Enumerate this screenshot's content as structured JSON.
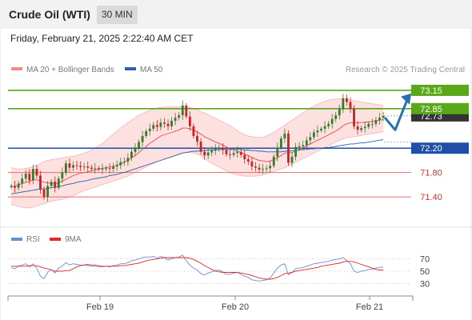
{
  "header": {
    "title": "Crude Oil (WTI)",
    "timeframe": "30 MIN"
  },
  "datetime": "Friday, February 21, 2025 2:22:40 AM CET",
  "credit": "Research © 2025 Trading Central",
  "legend": {
    "ma20": "MA 20 + Bollinger Bands",
    "ma50": "MA 50",
    "rsi": "RSI",
    "ma9": "9MA"
  },
  "colors": {
    "bull": "#3a7a2a",
    "bear": "#cc2222",
    "ma20": "#e84a4a",
    "ma50": "#2f5fa8",
    "band": "#fcd9d9",
    "resistance": "#5aa81a",
    "pivot": "#1f4fa8",
    "support": "#e76a6a",
    "rsi": "#6a8fd8",
    "ma9": "#e02a2a",
    "last_price_bg": "#333333",
    "arrow": "#2c6fb0"
  },
  "chart_data": {
    "type": "candlestick",
    "ylim": [
      71.06,
      73.32
    ],
    "x_ticks": [
      "Feb 19",
      "Feb 20",
      "Feb 21"
    ],
    "levels": [
      {
        "value": 73.15,
        "label": "73.15",
        "kind": "resistance"
      },
      {
        "value": 72.85,
        "label": "72.85",
        "kind": "resistance"
      },
      {
        "value": 72.2,
        "label": "72.20",
        "kind": "pivot"
      },
      {
        "value": 71.8,
        "label": "71.80",
        "kind": "support"
      },
      {
        "value": 71.4,
        "label": "71.40",
        "kind": "support"
      }
    ],
    "last_price": {
      "value": 72.73,
      "label": "72.73"
    },
    "close": [
      71.58,
      71.55,
      71.62,
      71.7,
      71.78,
      71.67,
      71.86,
      71.75,
      71.52,
      71.4,
      71.58,
      71.65,
      71.55,
      71.7,
      71.8,
      71.95,
      71.88,
      71.92,
      71.91,
      71.89,
      71.9,
      71.88,
      71.86,
      71.87,
      71.85,
      71.86,
      71.87,
      71.86,
      71.9,
      71.92,
      71.97,
      71.98,
      72.04,
      72.14,
      72.2,
      72.3,
      72.4,
      72.48,
      72.52,
      72.58,
      72.55,
      72.62,
      72.6,
      72.56,
      72.65,
      72.7,
      72.74,
      72.9,
      72.72,
      72.56,
      72.4,
      72.31,
      72.14,
      72.08,
      72.13,
      72.16,
      72.19,
      72.2,
      72.17,
      72.1,
      72.09,
      72.12,
      72.14,
      72.09,
      72.02,
      71.98,
      71.9,
      71.88,
      71.85,
      71.86,
      71.87,
      71.91,
      72.06,
      72.21,
      72.36,
      72.44,
      71.96,
      72.06,
      72.22,
      72.23,
      72.25,
      72.33,
      72.38,
      72.46,
      72.49,
      72.52,
      72.56,
      72.6,
      72.68,
      72.74,
      72.84,
      73.02,
      72.96,
      72.85,
      72.56,
      72.5,
      72.53,
      72.55,
      72.6,
      72.6,
      72.66,
      72.7,
      72.73
    ],
    "ma20": [
      71.58,
      71.57,
      71.6,
      71.62,
      71.64,
      71.65,
      71.68,
      71.68,
      71.66,
      71.64,
      71.63,
      71.62,
      71.61,
      71.63,
      71.66,
      71.69,
      71.72,
      71.75,
      71.77,
      71.79,
      71.8,
      71.81,
      71.83,
      71.84,
      71.86,
      71.87,
      71.88,
      71.89,
      71.9,
      71.92,
      71.94,
      71.97,
      72.0,
      72.04,
      72.08,
      72.13,
      72.18,
      72.23,
      72.28,
      72.32,
      72.36,
      72.4,
      72.42,
      72.44,
      72.46,
      72.48,
      72.5,
      72.53,
      72.53,
      72.52,
      72.5,
      72.47,
      72.43,
      72.39,
      72.36,
      72.33,
      72.3,
      72.28,
      72.25,
      72.22,
      72.19,
      72.17,
      72.15,
      72.13,
      72.1,
      72.08,
      72.05,
      72.02,
      72.0,
      71.99,
      71.98,
      71.99,
      72.01,
      72.04,
      72.08,
      72.12,
      72.12,
      72.13,
      72.15,
      72.18,
      72.21,
      72.24,
      72.27,
      72.3,
      72.33,
      72.36,
      72.39,
      72.42,
      72.45,
      72.48,
      72.52,
      72.57,
      72.6,
      72.62,
      72.62,
      72.62,
      72.62,
      72.63,
      72.63,
      72.64,
      72.65,
      72.66,
      72.67
    ],
    "ma50": [
      71.45,
      71.46,
      71.47,
      71.48,
      71.49,
      71.5,
      71.51,
      71.52,
      71.53,
      71.53,
      71.54,
      71.55,
      71.56,
      71.57,
      71.58,
      71.6,
      71.61,
      71.62,
      71.64,
      71.65,
      71.66,
      71.67,
      71.69,
      71.7,
      71.71,
      71.72,
      71.73,
      71.75,
      71.76,
      71.77,
      71.79,
      71.8,
      71.82,
      71.84,
      71.86,
      71.88,
      71.9,
      71.92,
      71.94,
      71.96,
      71.98,
      72.0,
      72.02,
      72.04,
      72.06,
      72.08,
      72.1,
      72.12,
      72.13,
      72.14,
      72.15,
      72.15,
      72.16,
      72.16,
      72.17,
      72.17,
      72.17,
      72.18,
      72.18,
      72.18,
      72.18,
      72.18,
      72.18,
      72.18,
      72.17,
      72.17,
      72.16,
      72.16,
      72.15,
      72.15,
      72.14,
      72.14,
      72.14,
      72.14,
      72.14,
      72.15,
      72.15,
      72.16,
      72.16,
      72.17,
      72.18,
      72.18,
      72.19,
      72.19,
      72.2,
      72.2,
      72.21,
      72.21,
      72.22,
      72.23,
      72.24,
      72.25,
      72.26,
      72.27,
      72.27,
      72.28,
      72.29,
      72.29,
      72.3,
      72.31,
      72.32,
      72.33,
      72.34
    ],
    "bb_upper": [
      71.88,
      71.87,
      71.86,
      71.86,
      71.87,
      71.88,
      71.9,
      71.92,
      71.95,
      71.98,
      72.0,
      72.01,
      72.02,
      72.03,
      72.04,
      72.05,
      72.06,
      72.07,
      72.08,
      72.1,
      72.12,
      72.14,
      72.17,
      72.2,
      72.24,
      72.28,
      72.33,
      72.38,
      72.43,
      72.48,
      72.53,
      72.58,
      72.62,
      72.66,
      72.7,
      72.74,
      72.77,
      72.8,
      72.82,
      72.84,
      72.86,
      72.87,
      72.88,
      72.88,
      72.88,
      72.88,
      72.88,
      72.89,
      72.88,
      72.87,
      72.85,
      72.83,
      72.8,
      72.78,
      72.75,
      72.72,
      72.69,
      72.66,
      72.63,
      72.6,
      72.57,
      72.53,
      72.49,
      72.45,
      72.42,
      72.4,
      72.39,
      72.38,
      72.38,
      72.38,
      72.4,
      72.43,
      72.46,
      72.5,
      72.54,
      72.58,
      72.62,
      72.66,
      72.7,
      72.74,
      72.78,
      72.82,
      72.86,
      72.89,
      72.92,
      72.95,
      72.97,
      72.99,
      73.0,
      73.01,
      73.01,
      73.01,
      73.0,
      72.99,
      72.98,
      72.97,
      72.96,
      72.95,
      72.94,
      72.93,
      72.92,
      72.91,
      72.9
    ],
    "bb_lower": [
      71.28,
      71.26,
      71.24,
      71.23,
      71.22,
      71.22,
      71.23,
      71.25,
      71.27,
      71.29,
      71.31,
      71.33,
      71.34,
      71.35,
      71.36,
      71.38,
      71.4,
      71.42,
      71.45,
      71.48,
      71.5,
      71.52,
      71.54,
      71.56,
      71.58,
      71.6,
      71.62,
      71.64,
      71.66,
      71.68,
      71.7,
      71.72,
      71.74,
      71.77,
      71.8,
      71.83,
      71.86,
      71.89,
      71.92,
      71.95,
      71.98,
      72.0,
      72.02,
      72.04,
      72.06,
      72.08,
      72.1,
      72.12,
      72.13,
      72.13,
      72.12,
      72.1,
      72.07,
      72.03,
      71.99,
      71.95,
      71.92,
      71.89,
      71.86,
      71.83,
      71.8,
      71.78,
      71.76,
      71.75,
      71.74,
      71.74,
      71.74,
      71.74,
      71.75,
      71.76,
      71.78,
      71.8,
      71.82,
      71.84,
      71.86,
      71.88,
      71.91,
      71.94,
      71.97,
      72.0,
      72.03,
      72.06,
      72.09,
      72.12,
      72.15,
      72.18,
      72.21,
      72.24,
      72.27,
      72.3,
      72.33,
      72.35,
      72.37,
      72.38,
      72.39,
      72.4,
      72.41,
      72.42,
      72.43,
      72.44,
      72.45,
      72.46,
      72.47
    ],
    "forecast": [
      [
        72.73,
        72.73
      ],
      [
        72.57,
        72.5
      ],
      [
        72.84,
        73.1
      ]
    ],
    "rsi": {
      "ylim": [
        15,
        85
      ],
      "ticks": [
        70,
        50,
        30
      ],
      "rsi": [
        56,
        54,
        58,
        60,
        62,
        57,
        62,
        55,
        42,
        38,
        48,
        53,
        47,
        55,
        58,
        64,
        60,
        62,
        61,
        60,
        60,
        59,
        58,
        58,
        57,
        57,
        58,
        57,
        59,
        60,
        62,
        62,
        64,
        67,
        68,
        70,
        72,
        73,
        73,
        74,
        71,
        74,
        72,
        68,
        70,
        72,
        73,
        76,
        67,
        60,
        55,
        52,
        46,
        44,
        47,
        49,
        51,
        52,
        49,
        45,
        45,
        47,
        48,
        45,
        42,
        40,
        36,
        35,
        34,
        35,
        36,
        39,
        47,
        55,
        60,
        62,
        44,
        48,
        54,
        55,
        56,
        58,
        60,
        62,
        63,
        64,
        65,
        66,
        68,
        69,
        70,
        72,
        67,
        62,
        50,
        48,
        50,
        51,
        53,
        53,
        55,
        56,
        57
      ],
      "ma9": [
        58,
        58,
        58,
        58,
        58,
        59,
        59,
        59,
        57,
        55,
        54,
        52,
        50,
        50,
        50,
        51,
        51,
        54,
        57,
        59,
        60,
        61,
        60,
        60,
        59,
        58,
        58,
        58,
        58,
        58,
        59,
        59,
        60,
        61,
        62,
        63,
        65,
        67,
        68,
        69,
        70,
        71,
        72,
        72,
        72,
        72,
        72,
        72,
        72,
        71,
        69,
        66,
        63,
        59,
        56,
        53,
        50,
        49,
        48,
        48,
        48,
        48,
        48,
        47,
        46,
        45,
        43,
        41,
        39,
        38,
        37,
        37,
        38,
        40,
        43,
        46,
        47,
        48,
        50,
        51,
        52,
        53,
        54,
        55,
        56,
        58,
        59,
        60,
        61,
        62,
        63,
        65,
        66,
        66,
        65,
        63,
        61,
        59,
        57,
        55,
        53,
        52,
        52
      ]
    }
  }
}
